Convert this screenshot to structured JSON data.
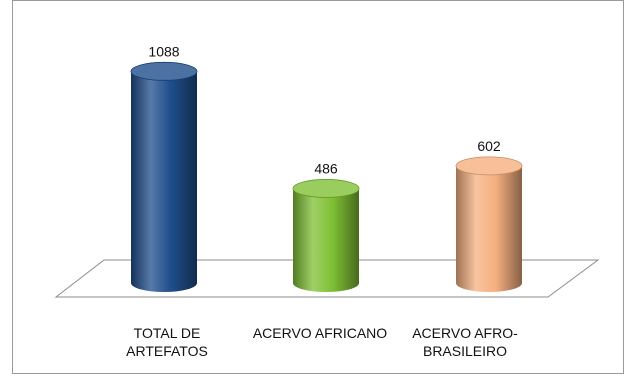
{
  "chart_data": {
    "type": "bar",
    "categories": [
      "TOTAL DE\nARTEFATOS",
      "ACERVO AFRICANO",
      "ACERVO AFRO-\nBRASILEIRO"
    ],
    "values": [
      1088,
      486,
      602
    ],
    "value_labels": [
      "1088",
      "486",
      "602"
    ],
    "colors": [
      "#1f4e8c",
      "#7fc034",
      "#f5b07f"
    ],
    "title": "",
    "xlabel": "",
    "ylabel": "",
    "ylim": [
      0,
      1100
    ],
    "grid": false,
    "legend": "none",
    "style": "3d-cylinder"
  }
}
